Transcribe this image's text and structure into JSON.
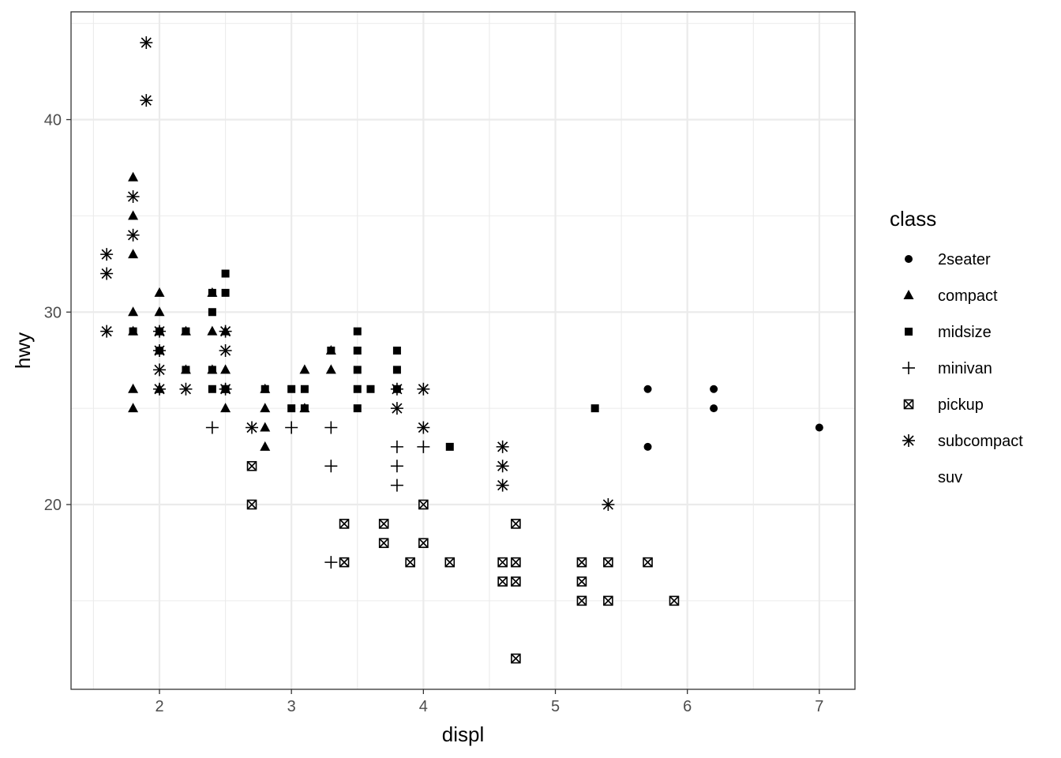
{
  "chart_data": {
    "type": "scatter",
    "xlabel": "displ",
    "ylabel": "hwy",
    "xlim": [
      1.33,
      7.27
    ],
    "ylim": [
      10.4,
      45.6
    ],
    "xticks": [
      2,
      3,
      4,
      5,
      6,
      7
    ],
    "yticks": [
      20,
      30,
      40
    ],
    "grid": true,
    "legend": {
      "title": "class",
      "placement": "right"
    },
    "series": [
      {
        "name": "2seater",
        "shape": "circle",
        "points": [
          [
            5.7,
            26
          ],
          [
            5.7,
            23
          ],
          [
            6.2,
            26
          ],
          [
            6.2,
            25
          ],
          [
            7.0,
            24
          ]
        ]
      },
      {
        "name": "compact",
        "shape": "triangle",
        "points": [
          [
            1.8,
            37
          ],
          [
            1.8,
            35
          ],
          [
            1.8,
            33
          ],
          [
            1.8,
            30
          ],
          [
            1.8,
            29
          ],
          [
            1.8,
            26
          ],
          [
            1.8,
            25
          ],
          [
            2.0,
            31
          ],
          [
            2.0,
            30
          ],
          [
            2.0,
            29
          ],
          [
            2.0,
            28
          ],
          [
            2.0,
            26
          ],
          [
            2.2,
            29
          ],
          [
            2.2,
            27
          ],
          [
            2.4,
            31
          ],
          [
            2.4,
            29
          ],
          [
            2.4,
            27
          ],
          [
            2.5,
            29
          ],
          [
            2.5,
            27
          ],
          [
            2.5,
            26
          ],
          [
            2.5,
            25
          ],
          [
            2.8,
            26
          ],
          [
            2.8,
            25
          ],
          [
            2.8,
            24
          ],
          [
            2.8,
            23
          ],
          [
            3.1,
            27
          ],
          [
            3.1,
            25
          ],
          [
            3.3,
            27
          ],
          [
            3.3,
            28
          ]
        ]
      },
      {
        "name": "midsize",
        "shape": "square",
        "points": [
          [
            1.8,
            29
          ],
          [
            2.0,
            29
          ],
          [
            2.0,
            28
          ],
          [
            2.2,
            29
          ],
          [
            2.2,
            27
          ],
          [
            2.4,
            31
          ],
          [
            2.4,
            30
          ],
          [
            2.4,
            27
          ],
          [
            2.4,
            26
          ],
          [
            2.5,
            32
          ],
          [
            2.5,
            31
          ],
          [
            2.5,
            26
          ],
          [
            2.8,
            26
          ],
          [
            3.0,
            26
          ],
          [
            3.0,
            25
          ],
          [
            3.1,
            26
          ],
          [
            3.1,
            25
          ],
          [
            3.3,
            28
          ],
          [
            3.5,
            29
          ],
          [
            3.5,
            28
          ],
          [
            3.5,
            27
          ],
          [
            3.5,
            26
          ],
          [
            3.5,
            25
          ],
          [
            3.6,
            26
          ],
          [
            3.8,
            28
          ],
          [
            3.8,
            27
          ],
          [
            3.8,
            26
          ],
          [
            4.2,
            23
          ],
          [
            5.3,
            25
          ]
        ]
      },
      {
        "name": "minivan",
        "shape": "plus",
        "points": [
          [
            2.4,
            24
          ],
          [
            3.0,
            24
          ],
          [
            3.3,
            24
          ],
          [
            3.3,
            22
          ],
          [
            3.3,
            17
          ],
          [
            3.8,
            23
          ],
          [
            3.8,
            22
          ],
          [
            3.8,
            21
          ],
          [
            4.0,
            23
          ]
        ]
      },
      {
        "name": "pickup",
        "shape": "boxx",
        "points": [
          [
            2.7,
            22
          ],
          [
            2.7,
            20
          ],
          [
            3.4,
            19
          ],
          [
            3.4,
            17
          ],
          [
            3.7,
            19
          ],
          [
            3.7,
            18
          ],
          [
            3.9,
            17
          ],
          [
            4.0,
            20
          ],
          [
            4.0,
            18
          ],
          [
            4.2,
            17
          ],
          [
            4.6,
            17
          ],
          [
            4.6,
            16
          ],
          [
            4.7,
            19
          ],
          [
            4.7,
            17
          ],
          [
            4.7,
            16
          ],
          [
            4.7,
            12
          ],
          [
            5.2,
            17
          ],
          [
            5.2,
            16
          ],
          [
            5.2,
            15
          ],
          [
            5.4,
            17
          ],
          [
            5.4,
            15
          ],
          [
            5.7,
            17
          ],
          [
            5.9,
            15
          ]
        ]
      },
      {
        "name": "subcompact",
        "shape": "asterisk",
        "points": [
          [
            1.6,
            33
          ],
          [
            1.6,
            32
          ],
          [
            1.6,
            29
          ],
          [
            1.8,
            36
          ],
          [
            1.8,
            34
          ],
          [
            1.9,
            44
          ],
          [
            1.9,
            41
          ],
          [
            2.0,
            29
          ],
          [
            2.0,
            28
          ],
          [
            2.0,
            27
          ],
          [
            2.0,
            26
          ],
          [
            2.2,
            26
          ],
          [
            2.5,
            29
          ],
          [
            2.5,
            28
          ],
          [
            2.5,
            26
          ],
          [
            2.7,
            24
          ],
          [
            3.8,
            26
          ],
          [
            3.8,
            25
          ],
          [
            4.0,
            26
          ],
          [
            4.0,
            24
          ],
          [
            4.6,
            23
          ],
          [
            4.6,
            22
          ],
          [
            4.6,
            21
          ],
          [
            5.4,
            20
          ]
        ]
      },
      {
        "name": "suv",
        "shape": "none",
        "points": []
      }
    ]
  },
  "colors": {
    "points": "#000000",
    "grid": "#ebebeb",
    "panel_border": "#333333",
    "tick_text": "#4d4d4d"
  }
}
